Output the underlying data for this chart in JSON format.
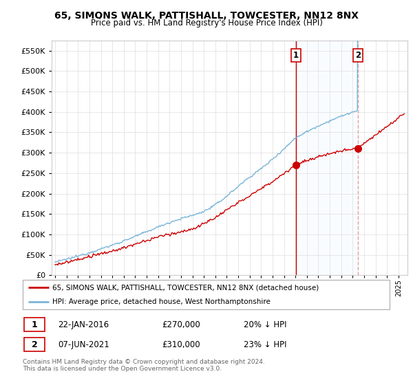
{
  "title_line1": "65, SIMONS WALK, PATTISHALL, TOWCESTER, NN12 8NX",
  "title_line2": "Price paid vs. HM Land Registry's House Price Index (HPI)",
  "yticks": [
    0,
    50000,
    100000,
    150000,
    200000,
    250000,
    300000,
    350000,
    400000,
    450000,
    500000,
    550000
  ],
  "ylim": [
    0,
    575000
  ],
  "hpi_color": "#7ab4d8",
  "price_color": "#cc0000",
  "vline1_color": "#cc0000",
  "vline2_color": "#e8a0a0",
  "shade_color": "#ddeeff",
  "marker1_year": 2016.06,
  "marker2_year": 2021.44,
  "marker1_price": 270000,
  "marker2_price": 310000,
  "legend_entry1": "65, SIMONS WALK, PATTISHALL, TOWCESTER, NN12 8NX (detached house)",
  "legend_entry2": "HPI: Average price, detached house, West Northamptonshire",
  "table_row1": [
    "1",
    "22-JAN-2016",
    "£270,000",
    "20% ↓ HPI"
  ],
  "table_row2": [
    "2",
    "07-JUN-2021",
    "£310,000",
    "23% ↓ HPI"
  ],
  "footnote": "Contains HM Land Registry data © Crown copyright and database right 2024.\nThis data is licensed under the Open Government Licence v3.0.",
  "background_color": "#ffffff",
  "grid_color": "#dddddd",
  "xstart": 1994.7,
  "xend": 2025.8
}
